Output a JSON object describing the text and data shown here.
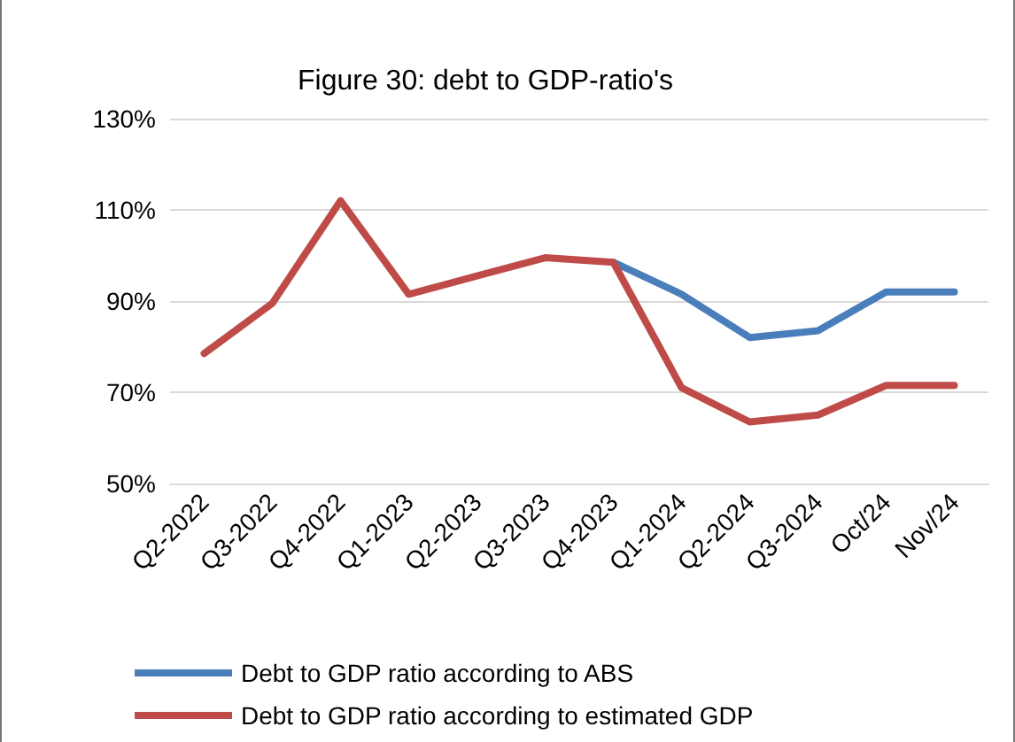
{
  "chart_data": {
    "type": "line",
    "title": "Figure 30: debt to GDP-ratio's",
    "categories": [
      "Q2-2022",
      "Q3-2022",
      "Q4-2022",
      "Q1-2023",
      "Q2-2023",
      "Q3-2023",
      "Q4-2023",
      "Q1-2024",
      "Q2-2024",
      "Q3-2024",
      "Oct/24",
      "Nov/24"
    ],
    "series": [
      {
        "name": "Debt to GDP ratio according to ABS",
        "color": "#4a7ebb",
        "values": [
          null,
          null,
          null,
          null,
          null,
          null,
          98.5,
          91.5,
          82,
          83.5,
          92,
          92
        ]
      },
      {
        "name": "Debt to GDP ratio according to estimated GDP",
        "color": "#be4b48",
        "values": [
          78.5,
          89.5,
          112,
          91.5,
          95.5,
          99.5,
          98.5,
          71,
          63.5,
          65,
          71.5,
          71.5
        ]
      }
    ],
    "ylim": [
      50,
      130
    ],
    "yticks": [
      {
        "value": 50,
        "label": "50%"
      },
      {
        "value": 70,
        "label": "70%"
      },
      {
        "value": 90,
        "label": "90%"
      },
      {
        "value": 110,
        "label": "110%"
      },
      {
        "value": 130,
        "label": "130%"
      }
    ],
    "grid": "y",
    "legend": "bottom",
    "marker": "none",
    "line_style": "solid"
  }
}
